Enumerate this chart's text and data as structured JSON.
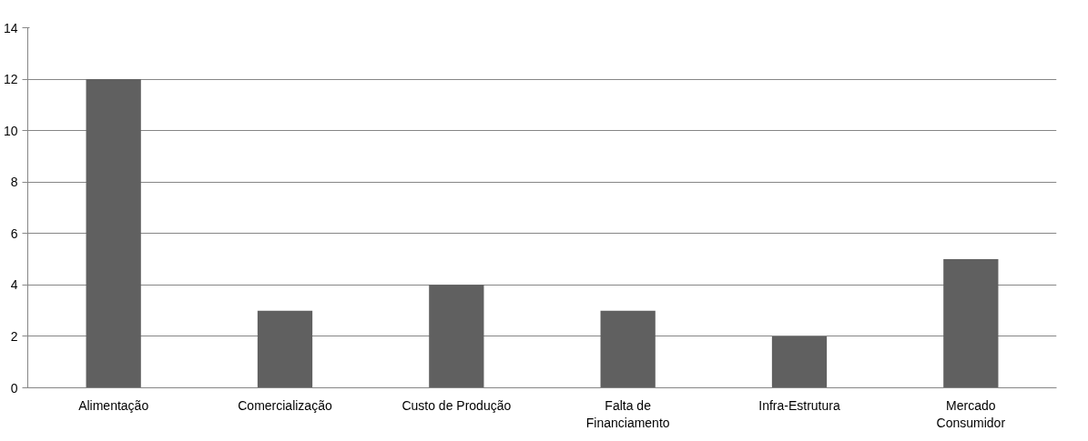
{
  "chart_data": {
    "type": "bar",
    "categories": [
      "Alimentação",
      "Comercialização",
      "Custo de Produção",
      "Falta de Financiamento",
      "Infra-Estrutura",
      "Mercado Consumidor"
    ],
    "values": [
      12,
      3,
      4,
      3,
      2,
      5
    ],
    "color": "#606060",
    "ylim": [
      0,
      14
    ],
    "yticks": [
      0,
      2,
      4,
      6,
      8,
      10,
      12,
      14
    ],
    "grid": "y"
  }
}
